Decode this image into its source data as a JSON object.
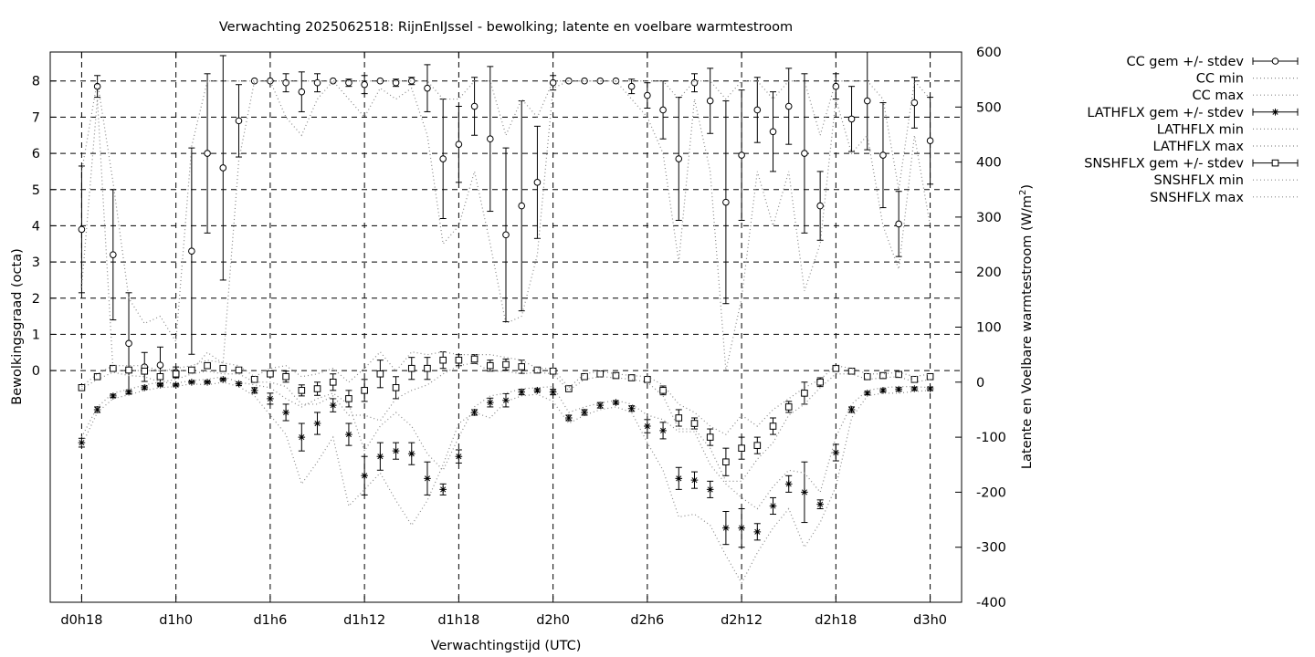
{
  "chart_data": {
    "type": "line",
    "title": "Verwachting 2025062518: RijnEnIJssel - bewolking; latente en voelbare warmtestroom",
    "xlabel": "Verwachtingstijd (UTC)",
    "ylabel": "Bewolkingsgraad (octa)",
    "y2label_prefix": "Latente en Voelbare warmtestroom (W/m",
    "y2label_sup": "2",
    "y2label_suffix": ")",
    "xlim": [
      -2,
      56
    ],
    "ylim": [
      -6.4,
      8.8
    ],
    "y2lim": [
      -400,
      600
    ],
    "grid": true,
    "legend_position": "outside-right",
    "x_tick_values": [
      0,
      6,
      12,
      18,
      24,
      30,
      36,
      42,
      48,
      54
    ],
    "x_tick_labels": [
      "d0h18",
      "d1h0",
      "d1h6",
      "d1h12",
      "d1h18",
      "d2h0",
      "d2h6",
      "d2h12",
      "d2h18",
      "d3h0"
    ],
    "y_tick_values": [
      0,
      1,
      2,
      3,
      4,
      5,
      6,
      7,
      8
    ],
    "y_tick_labels": [
      "0",
      "1",
      "2",
      "3",
      "4",
      "5",
      "6",
      "7",
      "8"
    ],
    "y2_tick_values": [
      -400,
      -300,
      -200,
      -100,
      0,
      100,
      200,
      300,
      400,
      500,
      600
    ],
    "y2_tick_labels": [
      "-400",
      "-300",
      "-200",
      "-100",
      "0",
      "100",
      "200",
      "300",
      "400",
      "500",
      "600"
    ],
    "x": [
      0,
      1,
      2,
      3,
      4,
      5,
      6,
      7,
      8,
      9,
      10,
      11,
      12,
      13,
      14,
      15,
      16,
      17,
      18,
      19,
      20,
      21,
      22,
      23,
      24,
      25,
      26,
      27,
      28,
      29,
      30,
      31,
      32,
      33,
      34,
      35,
      36,
      37,
      38,
      39,
      40,
      41,
      42,
      43,
      44,
      45,
      46,
      47,
      48,
      49,
      50,
      51,
      52,
      53,
      54
    ],
    "series": [
      {
        "name": "CC gem +/- stdev",
        "axis": "y",
        "marker": "circle",
        "values": [
          3.9,
          7.85,
          3.2,
          0.75,
          0.1,
          0.15,
          -0.05,
          3.3,
          6.0,
          5.6,
          6.9,
          8.0,
          8.0,
          7.95,
          7.7,
          7.95,
          8.0,
          7.95,
          7.9,
          8.0,
          7.95,
          8.0,
          7.8,
          5.85,
          6.25,
          7.3,
          6.4,
          3.75,
          4.55,
          5.2,
          7.95,
          8.0,
          8.0,
          8.0,
          8.0,
          7.85,
          7.6,
          7.2,
          5.85,
          7.95,
          7.45,
          4.65,
          5.95,
          7.2,
          6.6,
          7.3,
          6.0,
          4.55,
          7.85,
          6.95,
          7.45,
          5.95,
          4.05,
          7.4,
          6.35
        ],
        "stdev": [
          1.75,
          0.3,
          1.8,
          1.4,
          0.4,
          0.5,
          0.15,
          2.85,
          2.2,
          3.1,
          1.0,
          0,
          0,
          0.25,
          0.55,
          0.25,
          0,
          0.1,
          0.25,
          0,
          0.1,
          0.1,
          0.65,
          1.65,
          1.05,
          0.8,
          2.0,
          2.4,
          2.9,
          1.55,
          0.2,
          0,
          0,
          0,
          0,
          0.2,
          0.35,
          0.8,
          1.7,
          0.25,
          0.9,
          2.8,
          1.8,
          0.9,
          1.1,
          1.05,
          2.2,
          0.95,
          0.35,
          0.9,
          1.35,
          1.45,
          0.9,
          0.7,
          1.2
        ]
      },
      {
        "name": "CC min",
        "axis": "y",
        "style": "dotted",
        "values": [
          2.3,
          7.5,
          0.0,
          0.0,
          0.0,
          0.0,
          0.0,
          0.0,
          0.5,
          0.2,
          5.8,
          8.0,
          8.0,
          7.0,
          6.5,
          7.5,
          8.0,
          7.5,
          7.0,
          7.8,
          7.5,
          7.8,
          6.5,
          3.5,
          4.0,
          5.5,
          3.5,
          1.3,
          1.5,
          3.2,
          7.8,
          8.0,
          8.0,
          8.0,
          8.0,
          7.5,
          7.0,
          6.0,
          3.0,
          7.5,
          5.5,
          0.0,
          2.0,
          5.5,
          4.0,
          5.5,
          2.2,
          3.5,
          7.5,
          6.0,
          6.5,
          4.0,
          2.8,
          6.5,
          4.0
        ]
      },
      {
        "name": "CC max",
        "axis": "y",
        "style": "dotted",
        "values": [
          5.5,
          8.0,
          5.2,
          2.0,
          1.3,
          1.5,
          0.8,
          6.2,
          8.0,
          8.0,
          8.0,
          8.0,
          8.0,
          8.0,
          8.0,
          8.0,
          8.0,
          8.0,
          8.0,
          8.0,
          8.0,
          8.0,
          8.0,
          7.5,
          7.5,
          8.0,
          8.0,
          6.5,
          7.5,
          7.0,
          8.0,
          8.0,
          8.0,
          8.0,
          8.0,
          8.0,
          8.0,
          8.0,
          7.5,
          8.0,
          8.0,
          7.5,
          8.0,
          8.0,
          7.5,
          8.0,
          8.0,
          6.5,
          8.0,
          8.0,
          8.0,
          7.5,
          5.0,
          8.0,
          7.5
        ]
      },
      {
        "name": "LATHFLX gem +/- stdev",
        "axis": "y2",
        "marker": "star",
        "values": [
          -110,
          -50,
          -25,
          -18,
          -10,
          -5,
          -5,
          0,
          0,
          5,
          -3,
          -15,
          -30,
          -55,
          -100,
          -75,
          -42,
          -95,
          -170,
          -135,
          -125,
          -130,
          -175,
          -195,
          -135,
          -55,
          -37,
          -33,
          -18,
          -15,
          -18,
          -65,
          -55,
          -42,
          -37,
          -48,
          -80,
          -88,
          -175,
          -178,
          -195,
          -265,
          -265,
          -272,
          -225,
          -185,
          -200,
          -222,
          -128,
          -50,
          -20,
          -15,
          -13,
          -12,
          -12
        ],
        "stdev": [
          8,
          5,
          3,
          3,
          3,
          2,
          2,
          2,
          2,
          2,
          3,
          5,
          10,
          15,
          25,
          20,
          12,
          20,
          35,
          25,
          15,
          20,
          30,
          10,
          12,
          5,
          8,
          12,
          5,
          3,
          5,
          5,
          5,
          5,
          3,
          5,
          12,
          15,
          20,
          15,
          15,
          30,
          35,
          15,
          15,
          15,
          55,
          8,
          15,
          5,
          3,
          3,
          3,
          3,
          3
        ]
      },
      {
        "name": "LATHFLX min",
        "axis": "y2",
        "style": "dotted",
        "values": [
          -115,
          -55,
          -30,
          -23,
          -15,
          -10,
          -8,
          -3,
          -5,
          0,
          -8,
          -25,
          -60,
          -95,
          -185,
          -145,
          -100,
          -225,
          -195,
          -165,
          -215,
          -260,
          -215,
          -150,
          -75,
          -55,
          -65,
          -35,
          -25,
          -22,
          -35,
          -75,
          -60,
          -50,
          -45,
          -55,
          -110,
          -160,
          -245,
          -240,
          -260,
          -315,
          -365,
          -310,
          -265,
          -230,
          -300,
          -255,
          -190,
          -65,
          -25,
          -20,
          -20,
          -17,
          -15
        ]
      },
      {
        "name": "LATHFLX max",
        "axis": "y2",
        "style": "dotted",
        "values": [
          -100,
          -45,
          -20,
          -13,
          -5,
          0,
          -2,
          3,
          5,
          10,
          0,
          -5,
          -10,
          -30,
          -45,
          -30,
          -20,
          -40,
          -125,
          -80,
          -55,
          -80,
          -130,
          -160,
          -100,
          -45,
          -25,
          -20,
          -12,
          -10,
          -8,
          -55,
          -45,
          -38,
          -33,
          -40,
          -60,
          -68,
          -90,
          -90,
          -150,
          -185,
          -210,
          -230,
          -190,
          -160,
          -165,
          -200,
          -100,
          -40,
          -15,
          -10,
          -8,
          -8,
          -10
        ]
      },
      {
        "name": "SNSHFLX gem +/- stdev",
        "axis": "y2",
        "marker": "square",
        "values": [
          -10,
          10,
          25,
          22,
          20,
          10,
          15,
          22,
          30,
          25,
          22,
          5,
          15,
          10,
          -15,
          -12,
          0,
          -30,
          -15,
          15,
          -10,
          25,
          25,
          40,
          40,
          42,
          30,
          32,
          28,
          22,
          20,
          -12,
          10,
          15,
          12,
          8,
          5,
          -15,
          -65,
          -75,
          -100,
          -145,
          -120,
          -115,
          -80,
          -45,
          -20,
          0,
          25,
          20,
          10,
          12,
          14,
          5,
          10
        ],
        "stdev": [
          3,
          3,
          3,
          5,
          5,
          5,
          5,
          3,
          5,
          5,
          5,
          5,
          5,
          10,
          10,
          12,
          15,
          15,
          20,
          25,
          20,
          20,
          20,
          15,
          10,
          8,
          10,
          10,
          12,
          5,
          3,
          3,
          3,
          3,
          3,
          3,
          5,
          8,
          15,
          10,
          15,
          25,
          20,
          15,
          15,
          10,
          20,
          8,
          5,
          3,
          3,
          3,
          3,
          3,
          3
        ]
      },
      {
        "name": "SNSHFLX min",
        "axis": "y2",
        "style": "dotted",
        "values": [
          -12,
          5,
          18,
          12,
          10,
          0,
          5,
          15,
          20,
          15,
          15,
          0,
          0,
          -8,
          -40,
          -40,
          -25,
          -60,
          -60,
          -70,
          -30,
          -15,
          -5,
          15,
          30,
          35,
          20,
          20,
          15,
          18,
          15,
          -15,
          5,
          10,
          8,
          5,
          0,
          -25,
          -85,
          -85,
          -120,
          -180,
          -180,
          -140,
          -110,
          -60,
          -40,
          -10,
          15,
          15,
          5,
          8,
          10,
          0,
          5
        ]
      },
      {
        "name": "SNSHFLX max",
        "axis": "y2",
        "style": "dotted",
        "values": [
          -8,
          15,
          30,
          30,
          30,
          20,
          25,
          30,
          40,
          35,
          30,
          10,
          25,
          30,
          10,
          15,
          25,
          0,
          25,
          55,
          20,
          55,
          50,
          55,
          50,
          50,
          50,
          45,
          40,
          25,
          25,
          -10,
          15,
          20,
          15,
          12,
          10,
          -5,
          -40,
          -55,
          -80,
          -95,
          -60,
          -80,
          -50,
          -30,
          -10,
          5,
          30,
          25,
          15,
          15,
          18,
          10,
          15
        ]
      }
    ]
  }
}
